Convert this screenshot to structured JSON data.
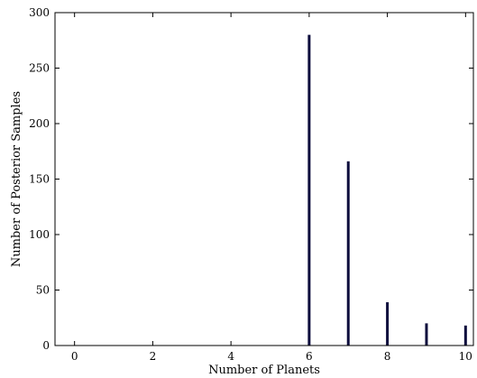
{
  "chart_data": {
    "type": "bar",
    "title": "",
    "xlabel": "Number of Planets",
    "ylabel": "Number of Posterior Samples",
    "xlim": [
      -0.5,
      10.2
    ],
    "ylim": [
      0,
      300
    ],
    "xticks": [
      0,
      2,
      4,
      6,
      8,
      10
    ],
    "yticks": [
      0,
      50,
      100,
      150,
      200,
      250,
      300
    ],
    "x": [
      6,
      7,
      8,
      9,
      10
    ],
    "values": [
      280,
      166,
      39,
      20,
      18
    ],
    "bar_color": "#0d0d3d",
    "grid": false,
    "legend": "none"
  }
}
